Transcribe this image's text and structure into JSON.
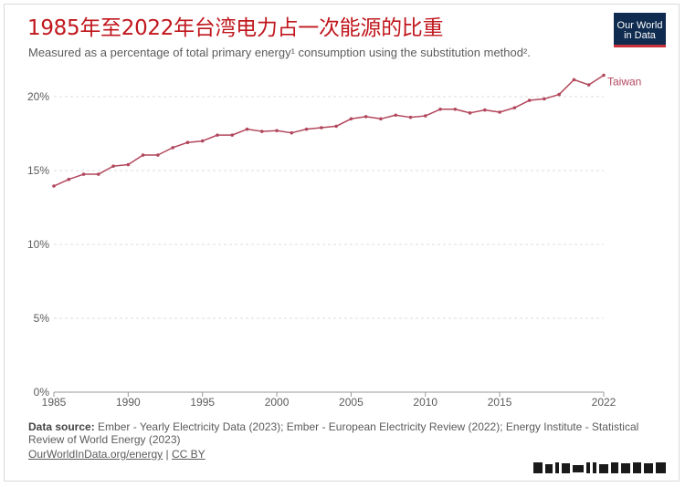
{
  "title": "1985年至2022年台湾电力占一次能源的比重",
  "subtitle": "Measured as a percentage of total primary energy¹ consumption using the substitution method².",
  "logo": {
    "line1": "Our World",
    "line2": "in Data"
  },
  "source": {
    "label": "Data source:",
    "text": "Ember - Yearly Electricity Data (2023); Ember - European Electricity Review (2022); Energy Institute - Statistical Review of World Energy (2023)"
  },
  "links": {
    "site": "OurWorldInData.org/energy",
    "sep": "|",
    "license": "CC BY"
  },
  "colors": {
    "series": "#b2475c",
    "title": "#c0171d",
    "grid": "#dddddd",
    "logo_bg": "#0f2b4f",
    "logo_bar": "#c8313a"
  },
  "chart_data": {
    "type": "line",
    "x": [
      1985,
      1986,
      1987,
      1988,
      1989,
      1990,
      1991,
      1992,
      1993,
      1994,
      1995,
      1996,
      1997,
      1998,
      1999,
      2000,
      2001,
      2002,
      2003,
      2004,
      2005,
      2006,
      2007,
      2008,
      2009,
      2010,
      2011,
      2012,
      2013,
      2014,
      2015,
      2016,
      2017,
      2018,
      2019,
      2020,
      2021,
      2022
    ],
    "series": [
      {
        "name": "Taiwan",
        "color": "#b2475c",
        "values": [
          13.95,
          14.4,
          14.75,
          14.75,
          15.3,
          15.4,
          16.05,
          16.05,
          16.55,
          16.9,
          17.0,
          17.4,
          17.4,
          17.8,
          17.65,
          17.7,
          17.55,
          17.8,
          17.9,
          18.0,
          18.5,
          18.65,
          18.5,
          18.75,
          18.6,
          18.7,
          19.15,
          19.15,
          18.9,
          19.1,
          18.95,
          19.25,
          19.75,
          19.85,
          20.15,
          21.15,
          20.8,
          21.45
        ]
      }
    ],
    "xlim": [
      1985,
      2022
    ],
    "ylim": [
      0,
      22
    ],
    "x_ticks": [
      1985,
      1990,
      1995,
      2000,
      2005,
      2010,
      2015,
      2022
    ],
    "x_tick_labels": [
      "1985",
      "1990",
      "1995",
      "2000",
      "2005",
      "2010",
      "2015",
      "2022"
    ],
    "y_ticks": [
      0,
      5,
      10,
      15,
      20
    ],
    "y_tick_labels": [
      "0%",
      "5%",
      "10%",
      "15%",
      "20%"
    ],
    "grid": true,
    "grid_style": "dashed-horizontal",
    "legend": "end-label"
  }
}
